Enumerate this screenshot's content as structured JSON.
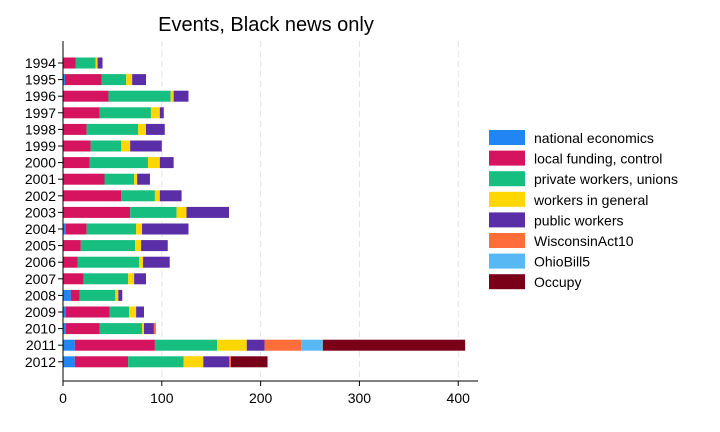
{
  "chart_data": {
    "type": "bar",
    "orientation": "horizontal",
    "stacked": true,
    "title": "Events, Black news only",
    "xlabel": "",
    "ylabel": "",
    "xlim": [
      0,
      420
    ],
    "xticks": [
      0,
      100,
      200,
      300,
      400
    ],
    "grid": "vertical-dashed",
    "legend_position": "right",
    "categories": [
      "1994",
      "1995",
      "1996",
      "1997",
      "1998",
      "1999",
      "2000",
      "2001",
      "2002",
      "2003",
      "2004",
      "2005",
      "2006",
      "2007",
      "2008",
      "2009",
      "2010",
      "2011",
      "2012"
    ],
    "series": [
      {
        "name": "national economics",
        "color": "#2185f3",
        "values": [
          0,
          2,
          0,
          0,
          0,
          0,
          0,
          0,
          0,
          0,
          3,
          0,
          0,
          0,
          8,
          3,
          3,
          12,
          12
        ]
      },
      {
        "name": "local funding, control",
        "color": "#d5135e",
        "values": [
          13,
          37,
          46,
          37,
          24,
          28,
          27,
          42,
          59,
          68,
          21,
          18,
          15,
          21,
          9,
          44,
          34,
          81,
          54
        ]
      },
      {
        "name": "private workers, unions",
        "color": "#16bf7f",
        "values": [
          20,
          25,
          63,
          52,
          52,
          31,
          59,
          30,
          34,
          47,
          50,
          55,
          62,
          45,
          36,
          20,
          43,
          63,
          56
        ]
      },
      {
        "name": "workers in general",
        "color": "#ffd700",
        "values": [
          2,
          6,
          3,
          9,
          8,
          9,
          12,
          3,
          5,
          10,
          6,
          6,
          4,
          6,
          3,
          7,
          2,
          30,
          20
        ]
      },
      {
        "name": "public workers",
        "color": "#5a2ea6",
        "values": [
          5,
          14,
          15,
          4,
          19,
          32,
          14,
          13,
          22,
          43,
          47,
          27,
          27,
          12,
          4,
          8,
          10,
          18,
          26
        ]
      },
      {
        "name": "WisconsinAct10",
        "color": "#ff6d3a",
        "values": [
          0,
          0,
          0,
          0,
          0,
          0,
          0,
          0,
          0,
          0,
          0,
          0,
          0,
          0,
          0,
          0,
          2,
          37,
          2
        ]
      },
      {
        "name": "OhioBill5",
        "color": "#57b8f4",
        "values": [
          0,
          0,
          0,
          0,
          0,
          0,
          0,
          0,
          0,
          0,
          0,
          0,
          0,
          0,
          0,
          0,
          0,
          22,
          0
        ]
      },
      {
        "name": "Occupy",
        "color": "#7a0019",
        "values": [
          0,
          0,
          0,
          0,
          0,
          0,
          0,
          0,
          0,
          0,
          0,
          0,
          0,
          0,
          0,
          0,
          0,
          144,
          37
        ]
      }
    ]
  }
}
